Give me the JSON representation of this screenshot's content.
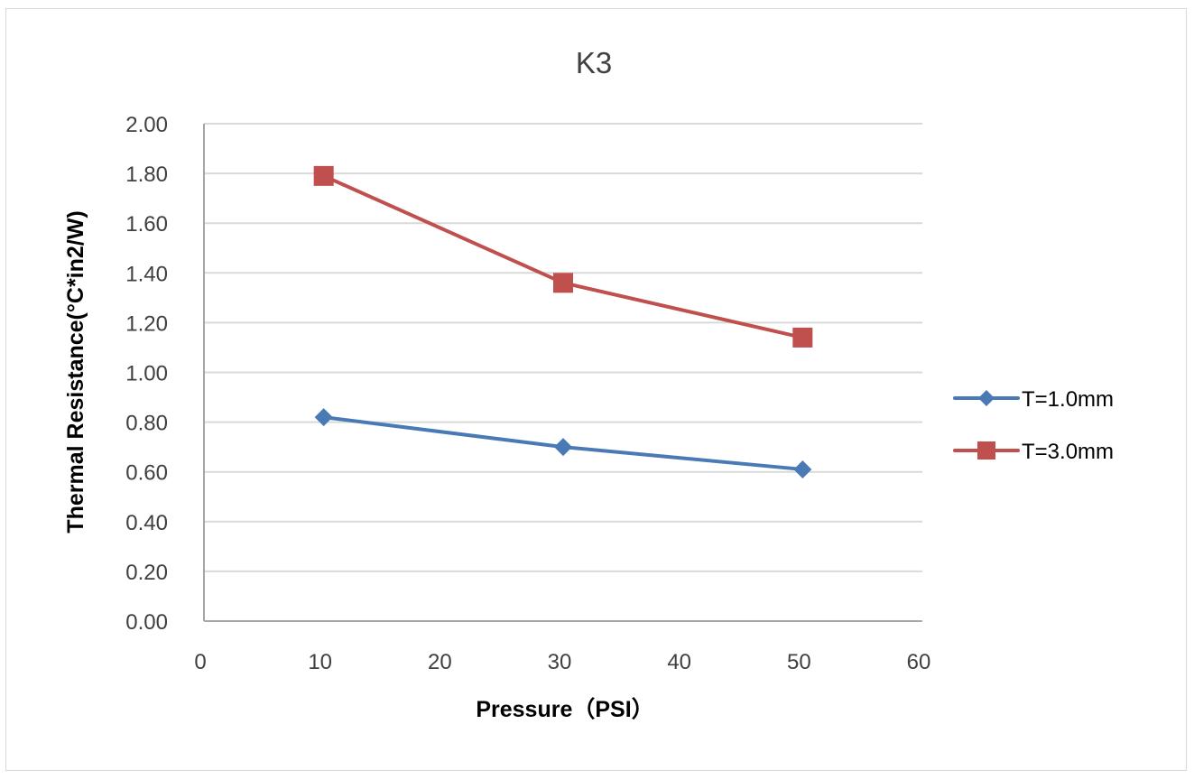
{
  "chart_data": {
    "type": "line",
    "title": "K3",
    "xlabel": "Pressure（PSI）",
    "ylabel": "Thermal Resistance(°C*in2/W)",
    "xlim": [
      0,
      60
    ],
    "ylim": [
      0,
      2.0
    ],
    "xticks": [
      0,
      10,
      20,
      30,
      40,
      50,
      60
    ],
    "xtick_labels": [
      "0",
      "10",
      "20",
      "30",
      "40",
      "50",
      "60"
    ],
    "yticks": [
      0,
      0.2,
      0.4,
      0.6,
      0.8,
      1.0,
      1.2,
      1.4,
      1.6,
      1.8,
      2.0
    ],
    "ytick_labels": [
      "0.00",
      "0.20",
      "0.40",
      "0.60",
      "0.80",
      "1.00",
      "1.20",
      "1.40",
      "1.60",
      "1.80",
      "2.00"
    ],
    "grid": "horizontal",
    "legend_position": "right",
    "x": [
      10,
      30,
      50
    ],
    "series": [
      {
        "name": "T=1.0mm",
        "values": [
          0.82,
          0.7,
          0.61
        ],
        "color": "#4a7ab5",
        "marker": "diamond"
      },
      {
        "name": "T=3.0mm",
        "values": [
          1.79,
          1.36,
          1.14
        ],
        "color": "#c0504d",
        "marker": "square"
      }
    ]
  }
}
